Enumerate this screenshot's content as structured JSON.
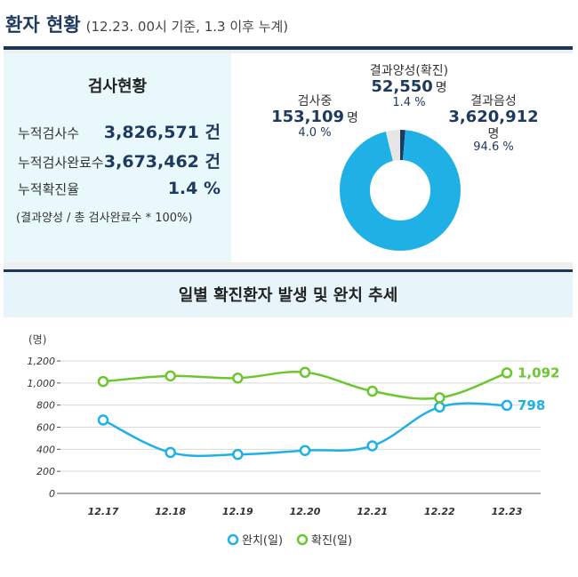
{
  "header": {
    "title": "환자 현황",
    "subtitle": "(12.23. 00시 기준, 1.3 이후 누계)"
  },
  "stats": {
    "title": "검사현황",
    "rows": [
      {
        "label": "누적검사수",
        "value": "3,826,571 건"
      },
      {
        "label": "누적검사완료수",
        "value": "3,673,462 건"
      },
      {
        "label": "누적확진율",
        "value": "1.4 %"
      }
    ],
    "note": "(결과양성 / 총 검사완료수 * 100%)"
  },
  "donut": {
    "unit": "명",
    "segments": [
      {
        "name": "결과양성(확진)",
        "value": "52,550",
        "pct": "1.4 %",
        "fraction": 0.014,
        "color": "#1f3a60"
      },
      {
        "name": "결과음성",
        "value": "3,620,912",
        "pct": "94.6 %",
        "fraction": 0.946,
        "color": "#1fb1e6"
      },
      {
        "name": "검사중",
        "value": "153,109",
        "pct": "4.0 %",
        "fraction": 0.04,
        "color": "#e6e6e6"
      }
    ]
  },
  "trend": {
    "title": "일별 확진환자 발생 및 완치 추세"
  },
  "chart_data": {
    "type": "line",
    "ylabel": "(명)",
    "ylim": [
      0,
      1200
    ],
    "yticks": [
      "0",
      "200",
      "400",
      "600",
      "800",
      "1,000",
      "1,200"
    ],
    "categories": [
      "12.17",
      "12.18",
      "12.19",
      "12.20",
      "12.21",
      "12.22",
      "12.23"
    ],
    "grid": true,
    "legend_position": "bottom",
    "series": [
      {
        "name": "완치(일)",
        "color": "#1fb1e6",
        "values": [
          665,
          371,
          353,
          389,
          431,
          783,
          798
        ],
        "end_label": "798"
      },
      {
        "name": "확진(일)",
        "color": "#6cc72f",
        "values": [
          1014,
          1064,
          1045,
          1097,
          926,
          867,
          1092
        ],
        "end_label": "1,092"
      }
    ]
  }
}
